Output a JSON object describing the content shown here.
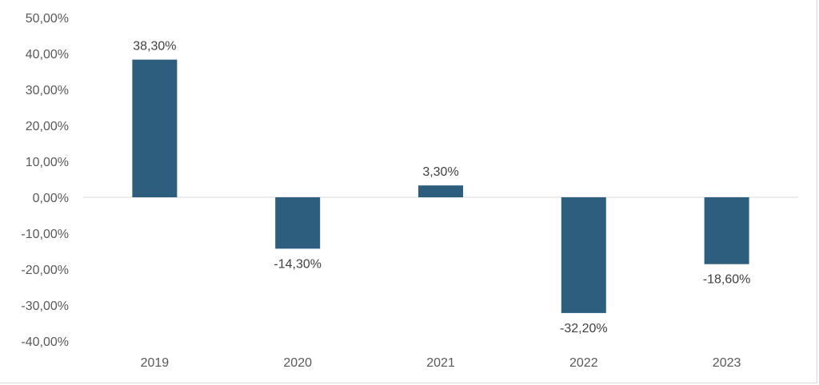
{
  "chart_data": {
    "type": "bar",
    "categories": [
      "2019",
      "2020",
      "2021",
      "2022",
      "2023"
    ],
    "values": [
      38.3,
      -14.3,
      3.3,
      -32.2,
      -18.6
    ],
    "data_labels": [
      "38,30%",
      "-14,30%",
      "3,30%",
      "-32,20%",
      "-18,60%"
    ],
    "yticks": [
      50,
      40,
      30,
      20,
      10,
      0,
      -10,
      -20,
      -30,
      -40
    ],
    "ytick_labels": [
      "50,00%",
      "40,00%",
      "30,00%",
      "20,00%",
      "10,00%",
      "0,00%",
      "-10,00%",
      "-20,00%",
      "-30,00%",
      "-40,00%"
    ],
    "ylim": [
      -40,
      50
    ],
    "grid": false,
    "bar_color": "#2e5e7e",
    "axis_color": "#d9d9d9"
  }
}
